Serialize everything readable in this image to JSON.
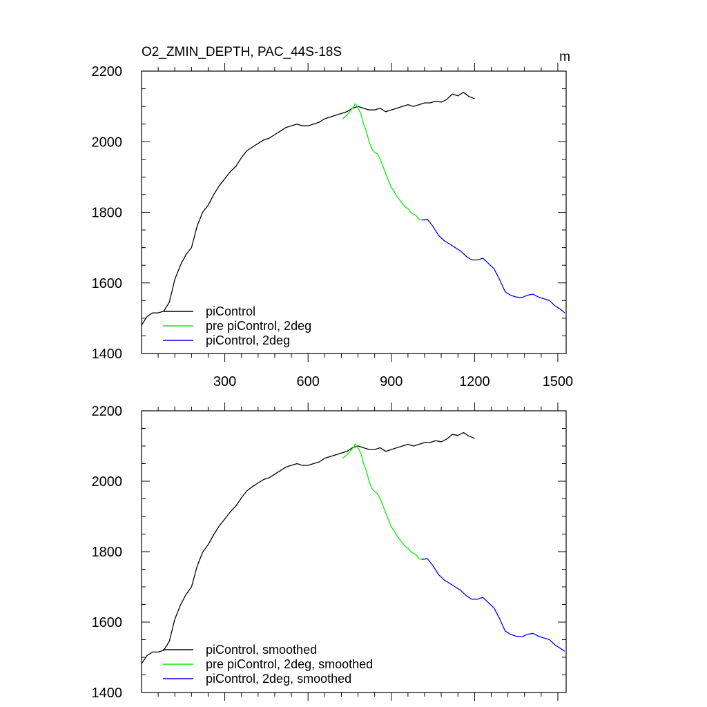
{
  "chart_data": [
    {
      "type": "line",
      "title": "O2_ZMIN_DEPTH, PAC_44S-18S",
      "units": "m",
      "xlim": [
        0,
        1530
      ],
      "ylim": [
        1400,
        2200
      ],
      "x_ticks": [
        300,
        600,
        900,
        1200,
        1500
      ],
      "x_ticklabels": [
        "300",
        "600",
        "900",
        "1200",
        "1500"
      ],
      "y_ticks": [
        1400,
        1600,
        1800,
        2000,
        2200
      ],
      "y_ticklabels": [
        "1400",
        "1600",
        "1800",
        "2000",
        "2200"
      ],
      "legend_position": "bottom-left",
      "series": [
        {
          "name": "piControl",
          "color": "#000000",
          "x": [
            0,
            20,
            40,
            60,
            80,
            100,
            120,
            140,
            160,
            180,
            200,
            220,
            240,
            260,
            280,
            300,
            320,
            340,
            360,
            380,
            400,
            420,
            440,
            460,
            480,
            500,
            520,
            540,
            560,
            580,
            600,
            620,
            640,
            660,
            680,
            700,
            720,
            740,
            760,
            780,
            800,
            820,
            840,
            860,
            880,
            900,
            920,
            940,
            960,
            980,
            1000,
            1020,
            1040,
            1060,
            1080,
            1100,
            1120,
            1140,
            1160,
            1180,
            1200
          ],
          "y": [
            1480,
            1505,
            1515,
            1515,
            1520,
            1545,
            1610,
            1650,
            1680,
            1700,
            1760,
            1800,
            1820,
            1850,
            1875,
            1895,
            1915,
            1930,
            1955,
            1975,
            1985,
            1995,
            2005,
            2010,
            2020,
            2030,
            2040,
            2045,
            2050,
            2045,
            2045,
            2050,
            2055,
            2065,
            2070,
            2075,
            2080,
            2085,
            2095,
            2100,
            2095,
            2090,
            2090,
            2095,
            2085,
            2090,
            2095,
            2100,
            2105,
            2100,
            2105,
            2110,
            2110,
            2115,
            2112,
            2120,
            2135,
            2130,
            2140,
            2128,
            2122
          ]
        },
        {
          "name": "pre piControl, 2deg",
          "color": "#00ee00",
          "x": [
            725,
            740,
            755,
            765,
            770,
            780,
            790,
            800,
            810,
            820,
            830,
            840,
            850,
            860,
            870,
            880,
            890,
            900,
            910,
            920,
            930,
            940,
            950,
            960,
            970,
            980,
            990,
            1000,
            1010
          ],
          "y": [
            2065,
            2075,
            2090,
            2100,
            2108,
            2095,
            2080,
            2050,
            2030,
            2000,
            1980,
            1970,
            1965,
            1950,
            1930,
            1910,
            1890,
            1870,
            1860,
            1845,
            1835,
            1825,
            1815,
            1810,
            1800,
            1795,
            1790,
            1780,
            1778
          ]
        },
        {
          "name": "piControl, 2deg",
          "color": "#0000ee",
          "x": [
            1010,
            1030,
            1050,
            1070,
            1090,
            1110,
            1130,
            1150,
            1170,
            1190,
            1210,
            1230,
            1250,
            1270,
            1290,
            1310,
            1330,
            1350,
            1370,
            1390,
            1410,
            1430,
            1450,
            1470,
            1490,
            1510,
            1525
          ],
          "y": [
            1778,
            1780,
            1760,
            1735,
            1720,
            1710,
            1700,
            1690,
            1675,
            1665,
            1665,
            1670,
            1655,
            1640,
            1610,
            1575,
            1565,
            1560,
            1558,
            1565,
            1568,
            1560,
            1555,
            1550,
            1535,
            1525,
            1515
          ]
        }
      ]
    },
    {
      "type": "line",
      "title": "",
      "xlim": [
        0,
        1530
      ],
      "ylim": [
        1400,
        2200
      ],
      "x_ticks": [
        300,
        600,
        900,
        1200,
        1500
      ],
      "x_ticklabels": [],
      "y_ticks": [
        1400,
        1600,
        1800,
        2000,
        2200
      ],
      "y_ticklabels": [
        "1400",
        "1600",
        "1800",
        "2000",
        "2200"
      ],
      "legend_position": "bottom-left",
      "series": [
        {
          "name": "piControl, smoothed",
          "color": "#000000",
          "x": [
            0,
            20,
            40,
            60,
            80,
            100,
            120,
            140,
            160,
            180,
            200,
            220,
            240,
            260,
            280,
            300,
            320,
            340,
            360,
            380,
            400,
            420,
            440,
            460,
            480,
            500,
            520,
            540,
            560,
            580,
            600,
            620,
            640,
            660,
            680,
            700,
            720,
            740,
            760,
            780,
            800,
            820,
            840,
            860,
            880,
            900,
            920,
            940,
            960,
            980,
            1000,
            1020,
            1040,
            1060,
            1080,
            1100,
            1120,
            1140,
            1160,
            1180,
            1200
          ],
          "y": [
            1482,
            1505,
            1515,
            1515,
            1520,
            1545,
            1608,
            1648,
            1678,
            1700,
            1758,
            1798,
            1820,
            1848,
            1873,
            1893,
            1913,
            1930,
            1953,
            1973,
            1985,
            1995,
            2005,
            2010,
            2020,
            2030,
            2040,
            2045,
            2050,
            2045,
            2045,
            2050,
            2055,
            2065,
            2070,
            2075,
            2080,
            2085,
            2095,
            2100,
            2095,
            2090,
            2090,
            2095,
            2085,
            2090,
            2095,
            2100,
            2105,
            2100,
            2105,
            2110,
            2110,
            2115,
            2112,
            2120,
            2133,
            2130,
            2138,
            2128,
            2122
          ]
        },
        {
          "name": "pre piControl, 2deg, smoothed",
          "color": "#00ee00",
          "x": [
            725,
            740,
            755,
            765,
            770,
            780,
            790,
            800,
            810,
            820,
            830,
            840,
            850,
            860,
            870,
            880,
            890,
            900,
            910,
            920,
            930,
            940,
            950,
            960,
            970,
            980,
            990,
            1000,
            1010
          ],
          "y": [
            2065,
            2075,
            2088,
            2098,
            2106,
            2095,
            2080,
            2050,
            2030,
            2000,
            1980,
            1970,
            1965,
            1950,
            1930,
            1910,
            1890,
            1870,
            1860,
            1845,
            1835,
            1825,
            1815,
            1810,
            1800,
            1795,
            1790,
            1780,
            1778
          ]
        },
        {
          "name": "piControl, 2deg, smoothed",
          "color": "#0000ee",
          "x": [
            1010,
            1030,
            1050,
            1070,
            1090,
            1110,
            1130,
            1150,
            1170,
            1190,
            1210,
            1230,
            1250,
            1270,
            1290,
            1310,
            1330,
            1350,
            1370,
            1390,
            1410,
            1430,
            1450,
            1470,
            1490,
            1510,
            1525
          ],
          "y": [
            1778,
            1780,
            1760,
            1735,
            1720,
            1710,
            1700,
            1690,
            1675,
            1665,
            1665,
            1670,
            1655,
            1640,
            1610,
            1575,
            1565,
            1560,
            1558,
            1565,
            1568,
            1560,
            1555,
            1550,
            1535,
            1525,
            1517
          ]
        }
      ]
    }
  ]
}
